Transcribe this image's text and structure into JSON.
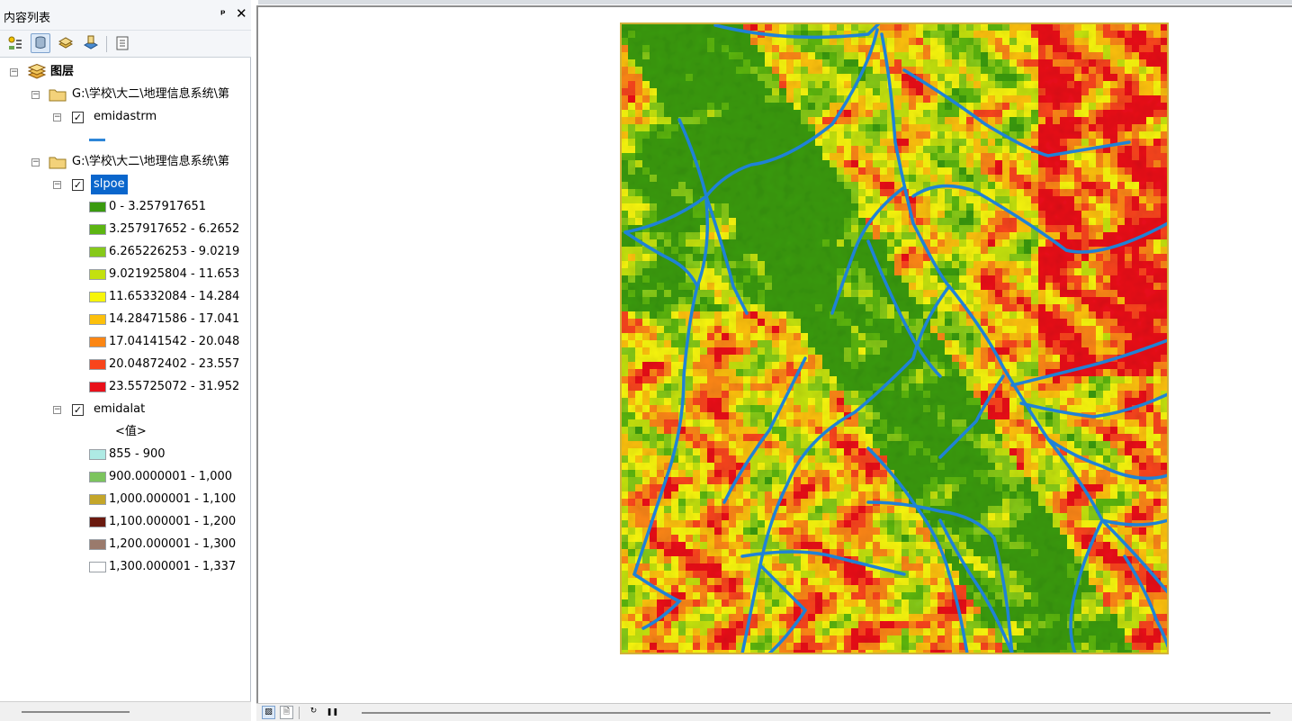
{
  "toc": {
    "title": "内容列表",
    "pin_glyph": "ᵖ",
    "close_glyph": "✕",
    "toolbar": [
      {
        "icon": "list-by-drawing-order-icon"
      },
      {
        "icon": "list-by-source-icon"
      },
      {
        "icon": "list-by-visibility-icon"
      },
      {
        "icon": "list-by-selection-icon"
      },
      {
        "icon": "options-icon"
      }
    ],
    "root_label": "图层",
    "groups": [
      {
        "path": "G:\\学校\\大二\\地理信息系统\\第",
        "layer": {
          "name": "emidastrm",
          "checked": true,
          "line_color": "#2e86d8"
        }
      },
      {
        "path": "G:\\学校\\大二\\地理信息系统\\第",
        "layer": {
          "name": "slpoe",
          "checked": true,
          "selected": true,
          "classes": [
            {
              "label": "0 - 3.257917651",
              "color": "#3a9a0f"
            },
            {
              "label": "3.257917652 - 6.2652",
              "color": "#5cb512"
            },
            {
              "label": "6.265226253 - 9.0219",
              "color": "#86c91a"
            },
            {
              "label": "9.021925804 - 11.653",
              "color": "#c3e10f"
            },
            {
              "label": "11.65332084 - 14.284",
              "color": "#f7f50a"
            },
            {
              "label": "14.28471586 - 17.041",
              "color": "#fcc00c"
            },
            {
              "label": "17.04141542 - 20.048",
              "color": "#fb8614"
            },
            {
              "label": "20.04872402 - 23.557",
              "color": "#f8451c"
            },
            {
              "label": "23.55725072 - 31.952",
              "color": "#e9101a"
            }
          ]
        }
      }
    ],
    "elev_layer": {
      "name": "emidalat",
      "checked": true,
      "value_header": "<值>",
      "classes": [
        {
          "label": "855 - 900",
          "color": "#aeeae4"
        },
        {
          "label": "900.0000001 - 1,000",
          "color": "#7cc45e"
        },
        {
          "label": "1,000.000001 - 1,100",
          "color": "#c4a62a"
        },
        {
          "label": "1,100.000001 - 1,200",
          "color": "#6b1a0f"
        },
        {
          "label": "1,200.000001 - 1,300",
          "color": "#9a7a6c"
        },
        {
          "label": "1,300.000001 - 1,337",
          "color": "#ffffff"
        }
      ]
    }
  },
  "map": {
    "stream_color": "#1f82d6",
    "frame_color": "#d1b13a"
  },
  "status_bar": {
    "buttons": [
      {
        "icon": "data-view-icon",
        "glyph": "▨"
      },
      {
        "icon": "layout-view-icon",
        "glyph": "🗎"
      },
      {
        "icon": "refresh-icon",
        "glyph": "↻"
      },
      {
        "icon": "pause-icon",
        "glyph": "❚❚"
      }
    ]
  }
}
